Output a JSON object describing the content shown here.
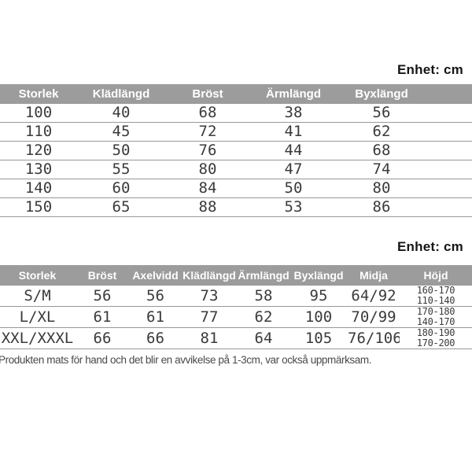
{
  "unit_label": "Enhet: cm",
  "kids_table": {
    "headers": [
      "Storlek",
      "Klädlängd",
      "Bröst",
      "Ärmlängd",
      "Byxlängd"
    ],
    "rows": [
      [
        "100",
        "40",
        "68",
        "38",
        "56"
      ],
      [
        "110",
        "45",
        "72",
        "41",
        "62"
      ],
      [
        "120",
        "50",
        "76",
        "44",
        "68"
      ],
      [
        "130",
        "55",
        "80",
        "47",
        "74"
      ],
      [
        "140",
        "60",
        "84",
        "50",
        "80"
      ],
      [
        "150",
        "65",
        "88",
        "53",
        "86"
      ]
    ]
  },
  "adult_table": {
    "headers": [
      "Storlek",
      "Bröst",
      "Axelvidd",
      "Klädlängd",
      "Ärmlängd",
      "Byxlängd",
      "Midja",
      "Höjd"
    ],
    "rows": [
      [
        "S/M",
        "56",
        "56",
        "73",
        "58",
        "95",
        "64/92",
        "160-170\n110-140"
      ],
      [
        "L/XL",
        "61",
        "61",
        "77",
        "62",
        "100",
        "70/99",
        "170-180\n140-170"
      ],
      [
        "XXL/XXXL",
        "66",
        "66",
        "81",
        "64",
        "105",
        "76/106",
        "180-190\n170-200"
      ]
    ]
  },
  "note": "Produkten mats för hand och det blir en avvikelse på 1-3cm, var också uppmärksam.",
  "colors": {
    "header_bg": "#9c9c9c",
    "header_text": "#ffffff",
    "row_line": "#989898",
    "data_text": "#3a3a3a",
    "unit_text": "#161616",
    "note_text": "#4a4a4a"
  }
}
